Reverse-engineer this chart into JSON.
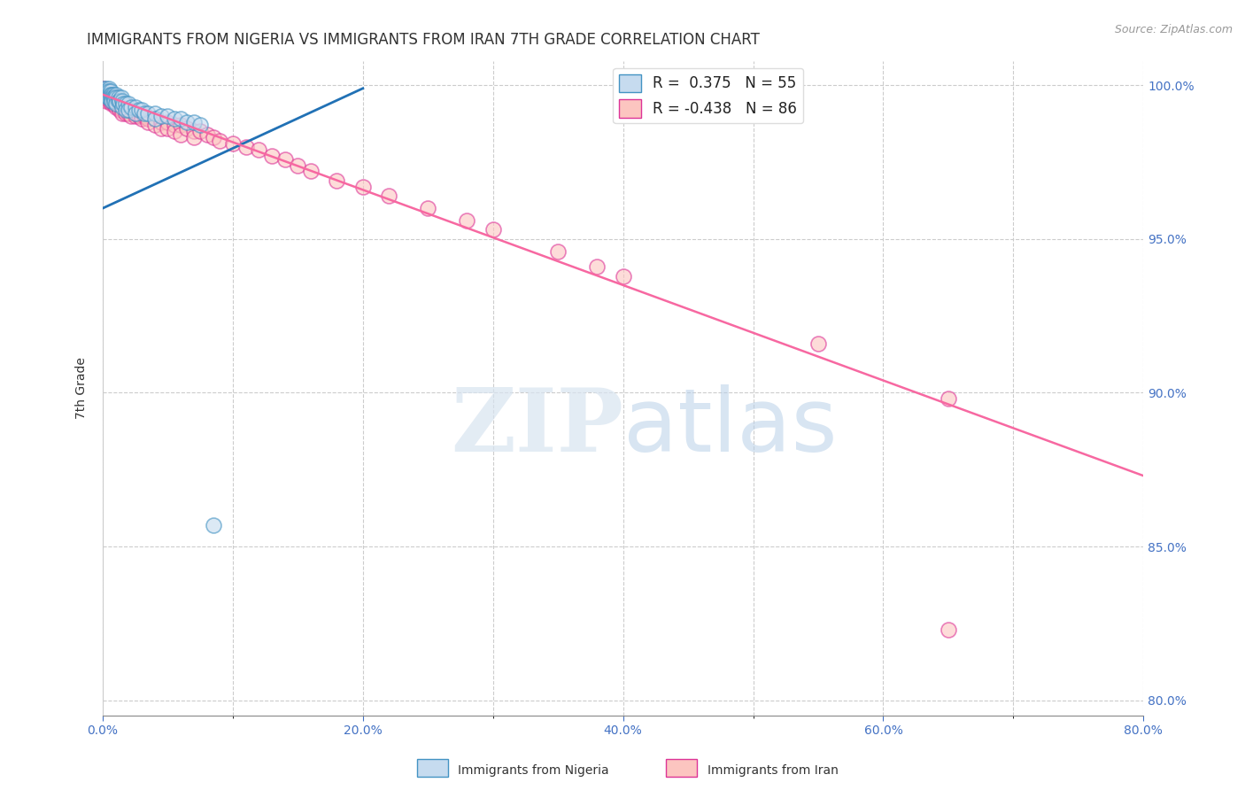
{
  "title": "IMMIGRANTS FROM NIGERIA VS IMMIGRANTS FROM IRAN 7TH GRADE CORRELATION CHART",
  "source": "Source: ZipAtlas.com",
  "xlim": [
    0.0,
    0.8
  ],
  "ylim": [
    0.795,
    1.008
  ],
  "ylabel": "7th Grade",
  "yticks": [
    0.8,
    0.85,
    0.9,
    0.95,
    1.0
  ],
  "ytick_labels": [
    "80.0%",
    "85.0%",
    "90.0%",
    "95.0%",
    "100.0%"
  ],
  "xticks": [
    0.0,
    0.1,
    0.2,
    0.3,
    0.4,
    0.5,
    0.6,
    0.7,
    0.8
  ],
  "xtick_labels": [
    "0.0%",
    "",
    "20.0%",
    "",
    "40.0%",
    "",
    "60.0%",
    "",
    "80.0%"
  ],
  "nigeria_scatter": [
    [
      0.001,
      0.999
    ],
    [
      0.002,
      0.998
    ],
    [
      0.002,
      0.997
    ],
    [
      0.003,
      0.999
    ],
    [
      0.003,
      0.998
    ],
    [
      0.003,
      0.997
    ],
    [
      0.004,
      0.998
    ],
    [
      0.004,
      0.997
    ],
    [
      0.004,
      0.996
    ],
    [
      0.005,
      0.999
    ],
    [
      0.005,
      0.998
    ],
    [
      0.005,
      0.997
    ],
    [
      0.005,
      0.996
    ],
    [
      0.006,
      0.998
    ],
    [
      0.006,
      0.997
    ],
    [
      0.006,
      0.996
    ],
    [
      0.007,
      0.997
    ],
    [
      0.007,
      0.996
    ],
    [
      0.007,
      0.995
    ],
    [
      0.008,
      0.997
    ],
    [
      0.008,
      0.996
    ],
    [
      0.009,
      0.996
    ],
    [
      0.009,
      0.995
    ],
    [
      0.01,
      0.997
    ],
    [
      0.01,
      0.996
    ],
    [
      0.01,
      0.994
    ],
    [
      0.012,
      0.996
    ],
    [
      0.012,
      0.995
    ],
    [
      0.013,
      0.995
    ],
    [
      0.014,
      0.996
    ],
    [
      0.015,
      0.995
    ],
    [
      0.015,
      0.993
    ],
    [
      0.016,
      0.994
    ],
    [
      0.018,
      0.994
    ],
    [
      0.018,
      0.992
    ],
    [
      0.02,
      0.994
    ],
    [
      0.02,
      0.992
    ],
    [
      0.022,
      0.993
    ],
    [
      0.025,
      0.993
    ],
    [
      0.025,
      0.991
    ],
    [
      0.028,
      0.992
    ],
    [
      0.03,
      0.992
    ],
    [
      0.032,
      0.991
    ],
    [
      0.035,
      0.991
    ],
    [
      0.04,
      0.991
    ],
    [
      0.04,
      0.989
    ],
    [
      0.045,
      0.99
    ],
    [
      0.05,
      0.99
    ],
    [
      0.055,
      0.989
    ],
    [
      0.06,
      0.989
    ],
    [
      0.065,
      0.988
    ],
    [
      0.07,
      0.988
    ],
    [
      0.075,
      0.987
    ],
    [
      0.085,
      0.857
    ]
  ],
  "iran_scatter": [
    [
      0.001,
      0.999
    ],
    [
      0.002,
      0.998
    ],
    [
      0.002,
      0.997
    ],
    [
      0.002,
      0.996
    ],
    [
      0.003,
      0.998
    ],
    [
      0.003,
      0.997
    ],
    [
      0.003,
      0.996
    ],
    [
      0.003,
      0.995
    ],
    [
      0.004,
      0.998
    ],
    [
      0.004,
      0.997
    ],
    [
      0.004,
      0.996
    ],
    [
      0.005,
      0.997
    ],
    [
      0.005,
      0.996
    ],
    [
      0.005,
      0.995
    ],
    [
      0.006,
      0.997
    ],
    [
      0.006,
      0.996
    ],
    [
      0.006,
      0.995
    ],
    [
      0.007,
      0.997
    ],
    [
      0.007,
      0.995
    ],
    [
      0.007,
      0.994
    ],
    [
      0.008,
      0.996
    ],
    [
      0.008,
      0.995
    ],
    [
      0.008,
      0.994
    ],
    [
      0.009,
      0.996
    ],
    [
      0.009,
      0.994
    ],
    [
      0.01,
      0.995
    ],
    [
      0.01,
      0.994
    ],
    [
      0.01,
      0.993
    ],
    [
      0.012,
      0.994
    ],
    [
      0.012,
      0.993
    ],
    [
      0.013,
      0.994
    ],
    [
      0.013,
      0.992
    ],
    [
      0.015,
      0.993
    ],
    [
      0.015,
      0.992
    ],
    [
      0.015,
      0.991
    ],
    [
      0.018,
      0.993
    ],
    [
      0.018,
      0.991
    ],
    [
      0.02,
      0.992
    ],
    [
      0.02,
      0.991
    ],
    [
      0.022,
      0.992
    ],
    [
      0.022,
      0.99
    ],
    [
      0.025,
      0.991
    ],
    [
      0.025,
      0.99
    ],
    [
      0.028,
      0.99
    ],
    [
      0.03,
      0.99
    ],
    [
      0.03,
      0.989
    ],
    [
      0.032,
      0.99
    ],
    [
      0.035,
      0.989
    ],
    [
      0.035,
      0.988
    ],
    [
      0.04,
      0.989
    ],
    [
      0.04,
      0.987
    ],
    [
      0.045,
      0.988
    ],
    [
      0.045,
      0.986
    ],
    [
      0.05,
      0.988
    ],
    [
      0.05,
      0.986
    ],
    [
      0.055,
      0.987
    ],
    [
      0.055,
      0.985
    ],
    [
      0.06,
      0.987
    ],
    [
      0.06,
      0.984
    ],
    [
      0.065,
      0.986
    ],
    [
      0.07,
      0.985
    ],
    [
      0.07,
      0.983
    ],
    [
      0.075,
      0.985
    ],
    [
      0.08,
      0.984
    ],
    [
      0.085,
      0.983
    ],
    [
      0.09,
      0.982
    ],
    [
      0.1,
      0.981
    ],
    [
      0.11,
      0.98
    ],
    [
      0.12,
      0.979
    ],
    [
      0.13,
      0.977
    ],
    [
      0.14,
      0.976
    ],
    [
      0.15,
      0.974
    ],
    [
      0.16,
      0.972
    ],
    [
      0.18,
      0.969
    ],
    [
      0.2,
      0.967
    ],
    [
      0.22,
      0.964
    ],
    [
      0.25,
      0.96
    ],
    [
      0.28,
      0.956
    ],
    [
      0.3,
      0.953
    ],
    [
      0.35,
      0.946
    ],
    [
      0.38,
      0.941
    ],
    [
      0.4,
      0.938
    ],
    [
      0.55,
      0.916
    ],
    [
      0.65,
      0.898
    ],
    [
      0.65,
      0.823
    ]
  ],
  "nigeria_line_x": [
    0.0,
    0.2
  ],
  "nigeria_line_y": [
    0.96,
    0.999
  ],
  "iran_line_x": [
    0.0,
    0.8
  ],
  "iran_line_y": [
    0.997,
    0.873
  ],
  "nigeria_color": "#6baed6",
  "nigeria_edge": "#4393c3",
  "nigeria_face": "#c6dbef",
  "iran_color": "#f768a1",
  "iran_edge": "#dd3497",
  "iran_face": "#fcc5c0",
  "nigeria_line_color": "#2171b5",
  "iran_line_color": "#f768a1",
  "title_fontsize": 12,
  "tick_fontsize": 10,
  "source_text": "Source: ZipAtlas.com"
}
